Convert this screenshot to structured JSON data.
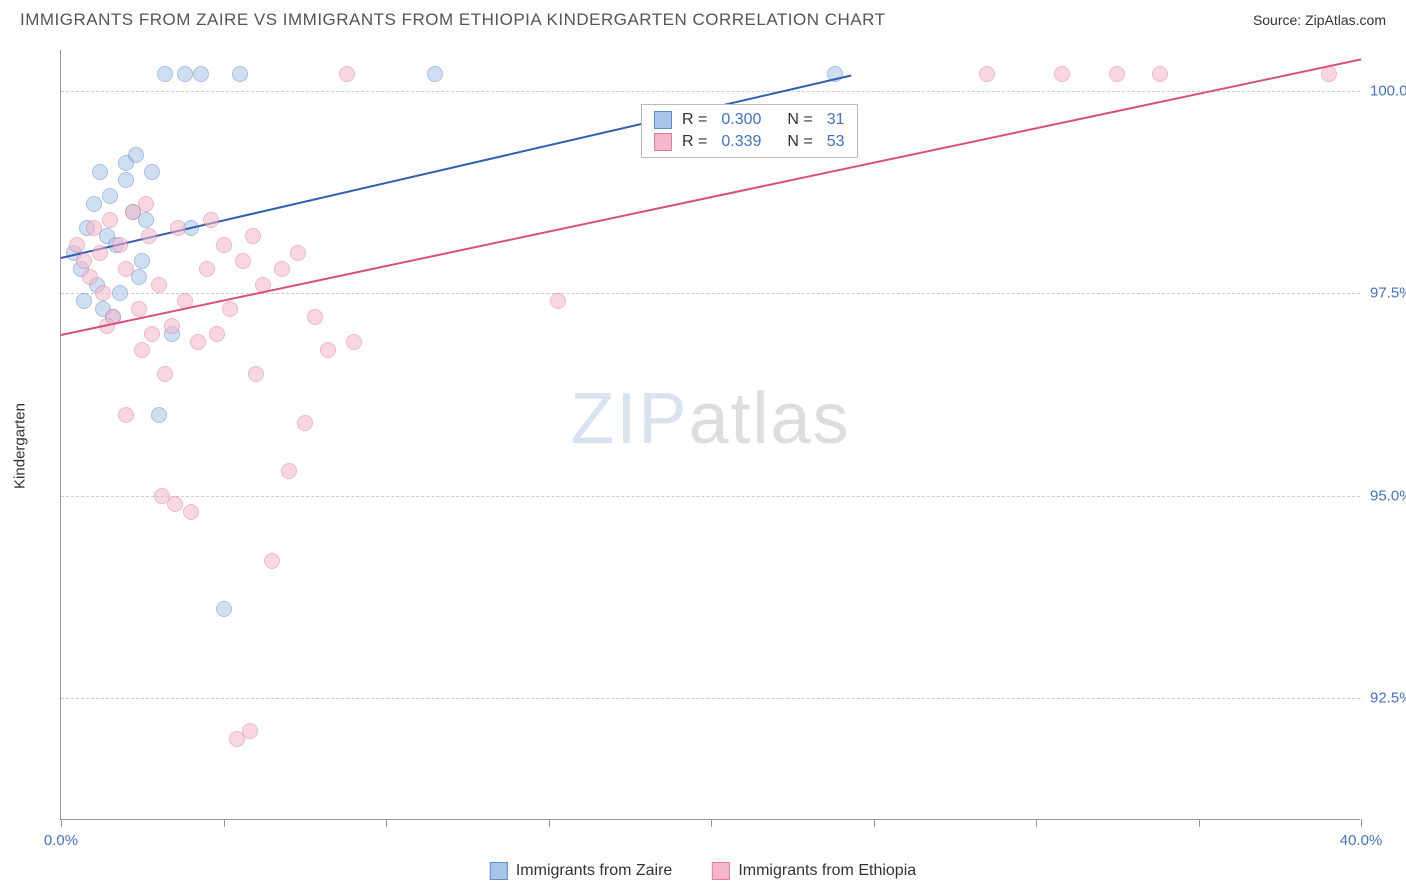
{
  "header": {
    "title": "IMMIGRANTS FROM ZAIRE VS IMMIGRANTS FROM ETHIOPIA KINDERGARTEN CORRELATION CHART",
    "source_label": "Source:",
    "source_value": "ZipAtlas.com"
  },
  "chart": {
    "type": "scatter",
    "yaxis_label": "Kindergarten",
    "background_color": "#ffffff",
    "grid_color": "#cccccc",
    "axis_color": "#999999",
    "watermark_zip": "ZIP",
    "watermark_atlas": "atlas",
    "xlim": [
      0,
      40
    ],
    "ylim": [
      91,
      100.5
    ],
    "xticks": [
      0,
      5,
      10,
      15,
      20,
      25,
      30,
      35,
      40
    ],
    "xtick_labels_shown": {
      "0": "0.0%",
      "40": "40.0%"
    },
    "yticks": [
      92.5,
      95.0,
      97.5,
      100.0
    ],
    "ytick_labels": [
      "92.5%",
      "95.0%",
      "97.5%",
      "100.0%"
    ],
    "series": [
      {
        "name": "Immigrants from Zaire",
        "fill_color": "#a8c5e8",
        "stroke_color": "#5b8fc7",
        "line_color": "#2e5fb0",
        "R": "0.300",
        "N": "31",
        "regression": {
          "x1": 0,
          "y1": 97.95,
          "x2": 24.3,
          "y2": 100.2
        },
        "points": [
          [
            0.4,
            98.0
          ],
          [
            0.6,
            97.8
          ],
          [
            0.7,
            97.4
          ],
          [
            0.8,
            98.3
          ],
          [
            1.0,
            98.6
          ],
          [
            1.1,
            97.6
          ],
          [
            1.2,
            99.0
          ],
          [
            1.4,
            98.2
          ],
          [
            1.5,
            98.7
          ],
          [
            1.7,
            98.1
          ],
          [
            1.8,
            97.5
          ],
          [
            2.0,
            98.9
          ],
          [
            2.0,
            99.1
          ],
          [
            2.2,
            98.5
          ],
          [
            2.3,
            99.2
          ],
          [
            2.5,
            97.9
          ],
          [
            2.6,
            98.4
          ],
          [
            2.8,
            99.0
          ],
          [
            3.0,
            96.0
          ],
          [
            3.2,
            100.2
          ],
          [
            3.8,
            100.2
          ],
          [
            4.3,
            100.2
          ],
          [
            3.4,
            97.0
          ],
          [
            4.0,
            98.3
          ],
          [
            5.0,
            93.6
          ],
          [
            5.5,
            100.2
          ],
          [
            1.6,
            97.2
          ],
          [
            2.4,
            97.7
          ],
          [
            11.5,
            100.2
          ],
          [
            23.8,
            100.2
          ],
          [
            1.3,
            97.3
          ]
        ]
      },
      {
        "name": "Immigrants from Ethiopia",
        "fill_color": "#f5b8ca",
        "stroke_color": "#e57ba0",
        "line_color": "#d94f7e",
        "R": "0.339",
        "N": "53",
        "regression": {
          "x1": 0,
          "y1": 97.0,
          "x2": 40,
          "y2": 100.4
        },
        "points": [
          [
            0.5,
            98.1
          ],
          [
            0.7,
            97.9
          ],
          [
            0.9,
            97.7
          ],
          [
            1.0,
            98.3
          ],
          [
            1.2,
            98.0
          ],
          [
            1.3,
            97.5
          ],
          [
            1.5,
            98.4
          ],
          [
            1.6,
            97.2
          ],
          [
            1.8,
            98.1
          ],
          [
            2.0,
            97.8
          ],
          [
            2.2,
            98.5
          ],
          [
            2.4,
            97.3
          ],
          [
            2.5,
            96.8
          ],
          [
            2.7,
            98.2
          ],
          [
            2.8,
            97.0
          ],
          [
            3.0,
            97.6
          ],
          [
            3.2,
            96.5
          ],
          [
            3.4,
            97.1
          ],
          [
            3.5,
            94.9
          ],
          [
            3.6,
            98.3
          ],
          [
            3.8,
            97.4
          ],
          [
            4.0,
            94.8
          ],
          [
            4.2,
            96.9
          ],
          [
            4.5,
            97.8
          ],
          [
            4.8,
            97.0
          ],
          [
            5.0,
            98.1
          ],
          [
            5.2,
            97.3
          ],
          [
            5.4,
            92.0
          ],
          [
            5.6,
            97.9
          ],
          [
            5.8,
            92.1
          ],
          [
            6.0,
            96.5
          ],
          [
            6.2,
            97.6
          ],
          [
            6.5,
            94.2
          ],
          [
            6.8,
            97.8
          ],
          [
            7.0,
            95.3
          ],
          [
            7.3,
            98.0
          ],
          [
            7.5,
            95.9
          ],
          [
            7.8,
            97.2
          ],
          [
            8.2,
            96.8
          ],
          [
            8.8,
            100.2
          ],
          [
            9.0,
            96.9
          ],
          [
            2.0,
            96.0
          ],
          [
            2.6,
            98.6
          ],
          [
            3.1,
            95.0
          ],
          [
            4.6,
            98.4
          ],
          [
            5.9,
            98.2
          ],
          [
            1.4,
            97.1
          ],
          [
            15.3,
            97.4
          ],
          [
            28.5,
            100.2
          ],
          [
            30.8,
            100.2
          ],
          [
            32.5,
            100.2
          ],
          [
            39.0,
            100.2
          ],
          [
            33.8,
            100.2
          ]
        ]
      }
    ],
    "legend": {
      "stat_label_R": "R =",
      "stat_label_N": "N ="
    }
  }
}
